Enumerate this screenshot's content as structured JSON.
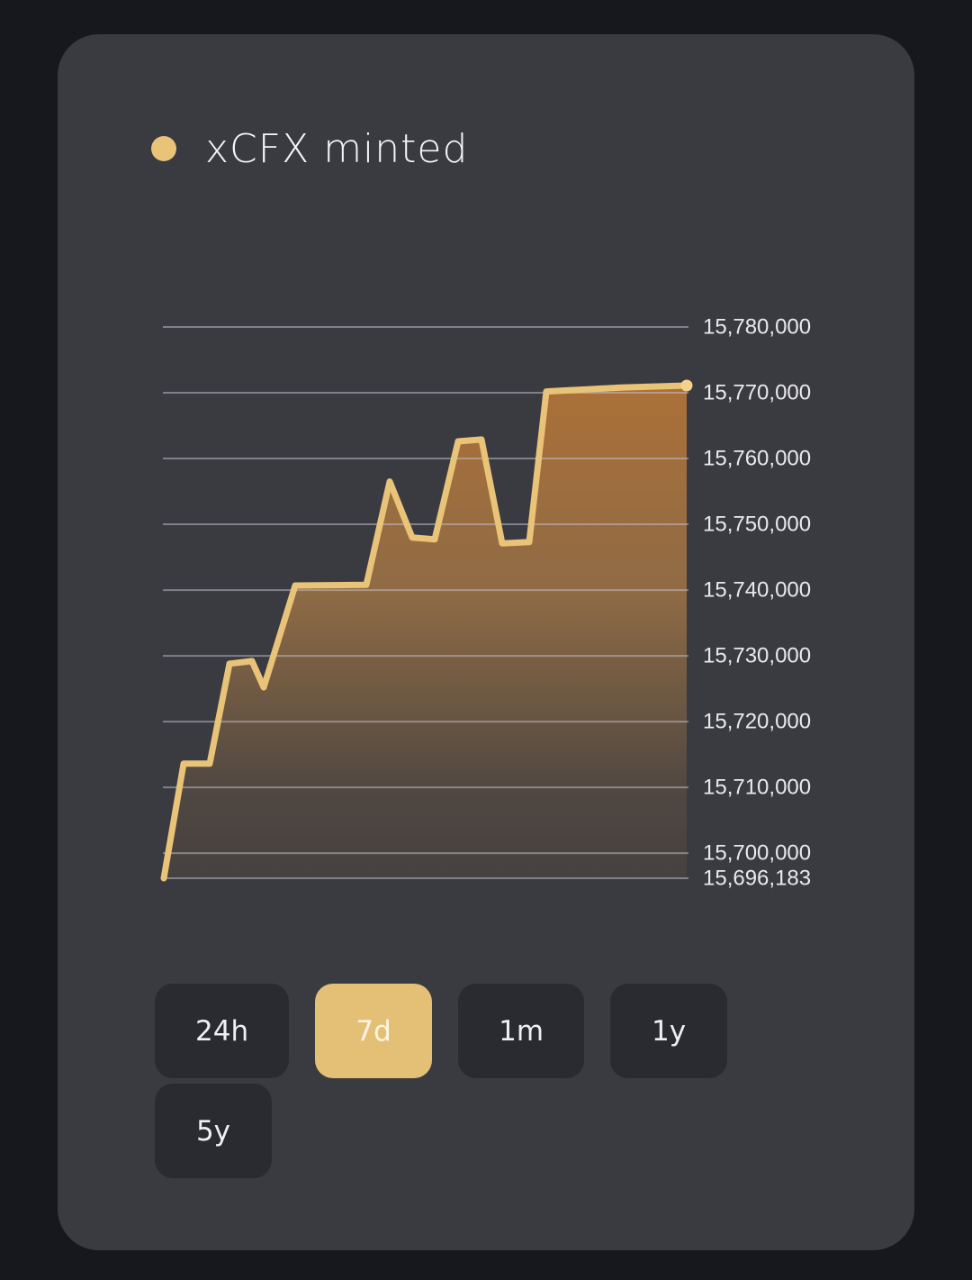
{
  "title": "xCFX minted",
  "legend": {
    "marker": "gold-dot",
    "label": "xCFX minted"
  },
  "colors": {
    "page_bg": "#17171e",
    "card_bg": "#3a3a41",
    "accent_gold": "#e9c377",
    "line": "#e9c377",
    "endpoint_dot": "#f4d28c",
    "gridline": "rgba(198,198,208,0.5)",
    "tick_label": "#e9e9ed",
    "fill_top": "#ab7038",
    "fill_mid": "#8f6b45",
    "fill_low": "#4f4741",
    "fill_bottom": "#464140",
    "button_bg": "#2a2a31",
    "button_text": "#eef0f2",
    "button_active_bg": "#e4c076",
    "button_active_text": "#fbf4e3"
  },
  "chart_data": {
    "type": "area",
    "title": "xCFX minted",
    "xlabel": "",
    "ylabel": "",
    "grid": true,
    "legend_position": "top-left",
    "y_min": 15696183,
    "y_max": 15780000,
    "ticks": [
      {
        "v": 15780000,
        "label": "15,780,000"
      },
      {
        "v": 15770000,
        "label": "15,770,000"
      },
      {
        "v": 15760000,
        "label": "15,760,000"
      },
      {
        "v": 15750000,
        "label": "15,750,000"
      },
      {
        "v": 15740000,
        "label": "15,740,000"
      },
      {
        "v": 15730000,
        "label": "15,730,000"
      },
      {
        "v": 15720000,
        "label": "15,720,000"
      },
      {
        "v": 15710000,
        "label": "15,710,000"
      },
      {
        "v": 15700000,
        "label": "15,700,000"
      },
      {
        "v": 15696183,
        "label": "15,696,183"
      }
    ],
    "series": [
      {
        "name": "xCFX minted",
        "points": [
          {
            "x": 1,
            "v": 15696183
          },
          {
            "x": 23,
            "v": 15713600
          },
          {
            "x": 52,
            "v": 15713600
          },
          {
            "x": 74,
            "v": 15728800
          },
          {
            "x": 99,
            "v": 15729200
          },
          {
            "x": 112,
            "v": 15725200
          },
          {
            "x": 147,
            "v": 15740700
          },
          {
            "x": 226,
            "v": 15740800
          },
          {
            "x": 252,
            "v": 15756500
          },
          {
            "x": 277,
            "v": 15748000
          },
          {
            "x": 302,
            "v": 15747700
          },
          {
            "x": 328,
            "v": 15762600
          },
          {
            "x": 354,
            "v": 15762900
          },
          {
            "x": 377,
            "v": 15747100
          },
          {
            "x": 407,
            "v": 15747300
          },
          {
            "x": 426,
            "v": 15770200
          },
          {
            "x": 509,
            "v": 15770800
          },
          {
            "x": 582,
            "v": 15771100
          }
        ]
      }
    ]
  },
  "time_range": {
    "rows": [
      [
        {
          "id": "24h",
          "label": "24h",
          "active": false
        },
        {
          "id": "7d",
          "label": "7d",
          "active": true
        },
        {
          "id": "1m",
          "label": "1m",
          "active": false
        },
        {
          "id": "1y",
          "label": "1y",
          "active": false
        }
      ],
      [
        {
          "id": "5y",
          "label": "5y",
          "active": false
        }
      ]
    ]
  }
}
